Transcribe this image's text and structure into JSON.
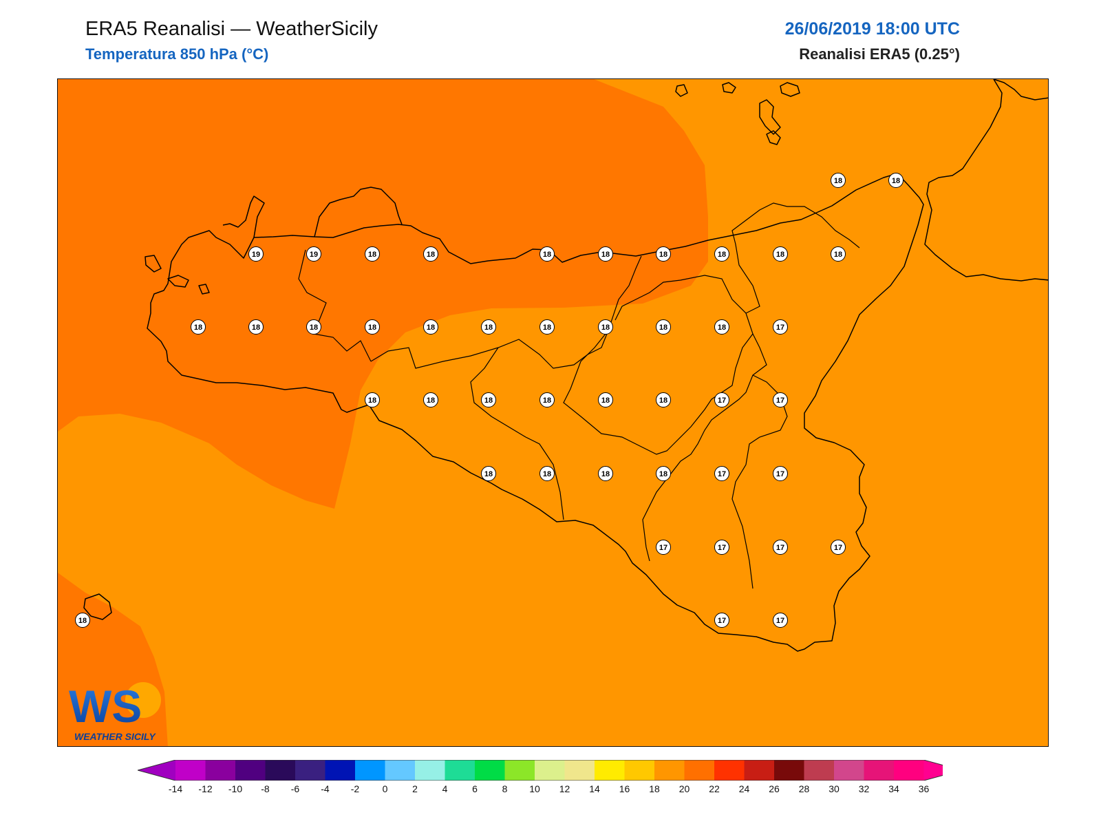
{
  "header": {
    "title": "ERA5 Reanalisi — WeatherSicily",
    "subtitle": "Temperatura 850 hPa (°C)",
    "datetime": "26/06/2019 18:00 UTC",
    "model": "Reanalisi ERA5 (0.25°)"
  },
  "colors": {
    "band_16_18": "#ff9600",
    "band_18_20": "#ff7700",
    "coast": "#000000",
    "header_accent": "#1565c0"
  },
  "map": {
    "station_values": [
      {
        "v": "18"
      },
      {
        "v": "18"
      },
      {
        "v": "19"
      },
      {
        "v": "19"
      },
      {
        "v": "18"
      },
      {
        "v": "18"
      },
      {
        "v": "18"
      },
      {
        "v": "18"
      },
      {
        "v": "18"
      },
      {
        "v": "18"
      },
      {
        "v": "18"
      },
      {
        "v": "18"
      },
      {
        "v": "18"
      },
      {
        "v": "18"
      },
      {
        "v": "18"
      },
      {
        "v": "18"
      },
      {
        "v": "18"
      },
      {
        "v": "18"
      },
      {
        "v": "18"
      },
      {
        "v": "18"
      },
      {
        "v": "18"
      },
      {
        "v": "18"
      },
      {
        "v": "17"
      },
      {
        "v": "18"
      },
      {
        "v": "18"
      },
      {
        "v": "18"
      },
      {
        "v": "18"
      },
      {
        "v": "18"
      },
      {
        "v": "18"
      },
      {
        "v": "17"
      },
      {
        "v": "17"
      },
      {
        "v": "18"
      },
      {
        "v": "18"
      },
      {
        "v": "18"
      },
      {
        "v": "18"
      },
      {
        "v": "17"
      },
      {
        "v": "17"
      },
      {
        "v": "17"
      },
      {
        "v": "17"
      },
      {
        "v": "17"
      },
      {
        "v": "17"
      },
      {
        "v": "17"
      },
      {
        "v": "17"
      },
      {
        "v": "18"
      }
    ]
  },
  "colorbar": {
    "ticks": [
      "-14",
      "-12",
      "-10",
      "-8",
      "-6",
      "-4",
      "-2",
      "0",
      "2",
      "4",
      "6",
      "8",
      "10",
      "12",
      "14",
      "16",
      "18",
      "20",
      "22",
      "24",
      "26",
      "28",
      "30",
      "32",
      "34",
      "36"
    ],
    "under_color": "#a000c0",
    "over_color": "#ff0090",
    "colors": [
      "#c000c8",
      "#8a009e",
      "#500080",
      "#2a0a5a",
      "#3a2080",
      "#0014b4",
      "#0096ff",
      "#64c8ff",
      "#96f0e6",
      "#1edc96",
      "#00dc46",
      "#8ce628",
      "#dcf08c",
      "#f0e68c",
      "#ffeb00",
      "#ffc800",
      "#ff9600",
      "#ff7000",
      "#ff3200",
      "#c81e14",
      "#780a0a",
      "#be3c50",
      "#d2468c",
      "#e61478",
      "#ff007f"
    ]
  },
  "logo": {
    "mark": "WS",
    "text": "WEATHER SICILY"
  }
}
